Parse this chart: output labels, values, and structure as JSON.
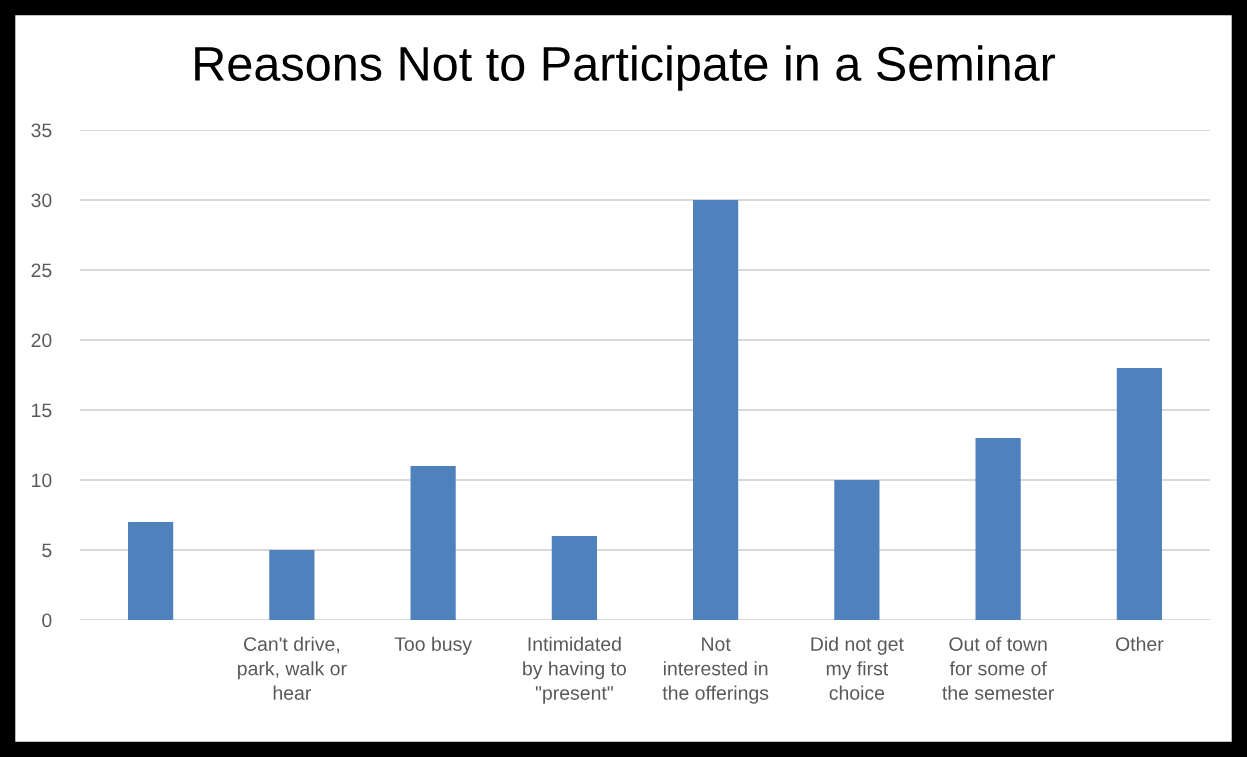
{
  "chart_data": {
    "type": "bar",
    "title": "Reasons Not to Participate in a Seminar",
    "categories": [
      null,
      "Can't drive,\npark, walk or\nhear",
      "Too busy",
      "Intimidated\nby having to\n\"present\"",
      "Not\ninterested in\nthe offerings",
      "Did not get\nmy first\nchoice",
      "Out of town\nfor some of\nthe semester",
      "Other"
    ],
    "values": [
      7,
      5,
      11,
      6,
      30,
      10,
      13,
      18
    ],
    "color": "#4f81bd",
    "ylim": [
      0,
      35
    ],
    "yticks": [
      0,
      5,
      10,
      15,
      20,
      25,
      30,
      35
    ],
    "grid": "y"
  }
}
